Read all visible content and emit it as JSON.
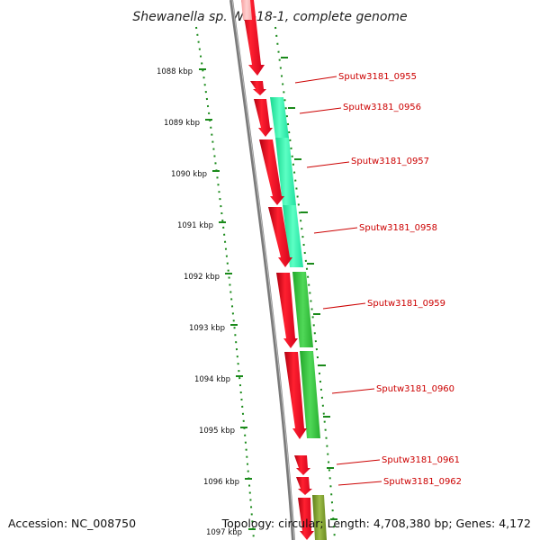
{
  "title": "Shewanella sp. W3-18-1, complete genome",
  "footer": {
    "accession": "Accession: NC_008750",
    "topology": "Topology: circular; Length: 4,708,380 bp; Genes: 4,172"
  },
  "colors": {
    "cds_forward": "#e8001a",
    "cds_light": "#ffb0b0",
    "cog_teal": "#2cf0a8",
    "cog_green": "#33c43a",
    "cog_olive": "#7a9c2a",
    "backbone": "#808080",
    "tick": "#1a8a1a",
    "label": "#cc0000"
  },
  "scale": {
    "unit": "kbp",
    "ticks": [
      {
        "label": "1088 kbp",
        "kbp": 1088
      },
      {
        "label": "1089 kbp",
        "kbp": 1089
      },
      {
        "label": "1090 kbp",
        "kbp": 1090
      },
      {
        "label": "1091 kbp",
        "kbp": 1091
      },
      {
        "label": "1092 kbp",
        "kbp": 1092
      },
      {
        "label": "1093 kbp",
        "kbp": 1093
      },
      {
        "label": "1094 kbp",
        "kbp": 1094
      },
      {
        "label": "1095 kbp",
        "kbp": 1095
      },
      {
        "label": "1096 kbp",
        "kbp": 1096
      },
      {
        "label": "1097 kbp",
        "kbp": 1097
      }
    ]
  },
  "genes": [
    {
      "name": "Sputw3181_0955"
    },
    {
      "name": "Sputw3181_0956"
    },
    {
      "name": "Sputw3181_0957"
    },
    {
      "name": "Sputw3181_0958"
    },
    {
      "name": "Sputw3181_0959"
    },
    {
      "name": "Sputw3181_0960"
    },
    {
      "name": "Sputw3181_0961"
    },
    {
      "name": "Sputw3181_0962"
    }
  ]
}
